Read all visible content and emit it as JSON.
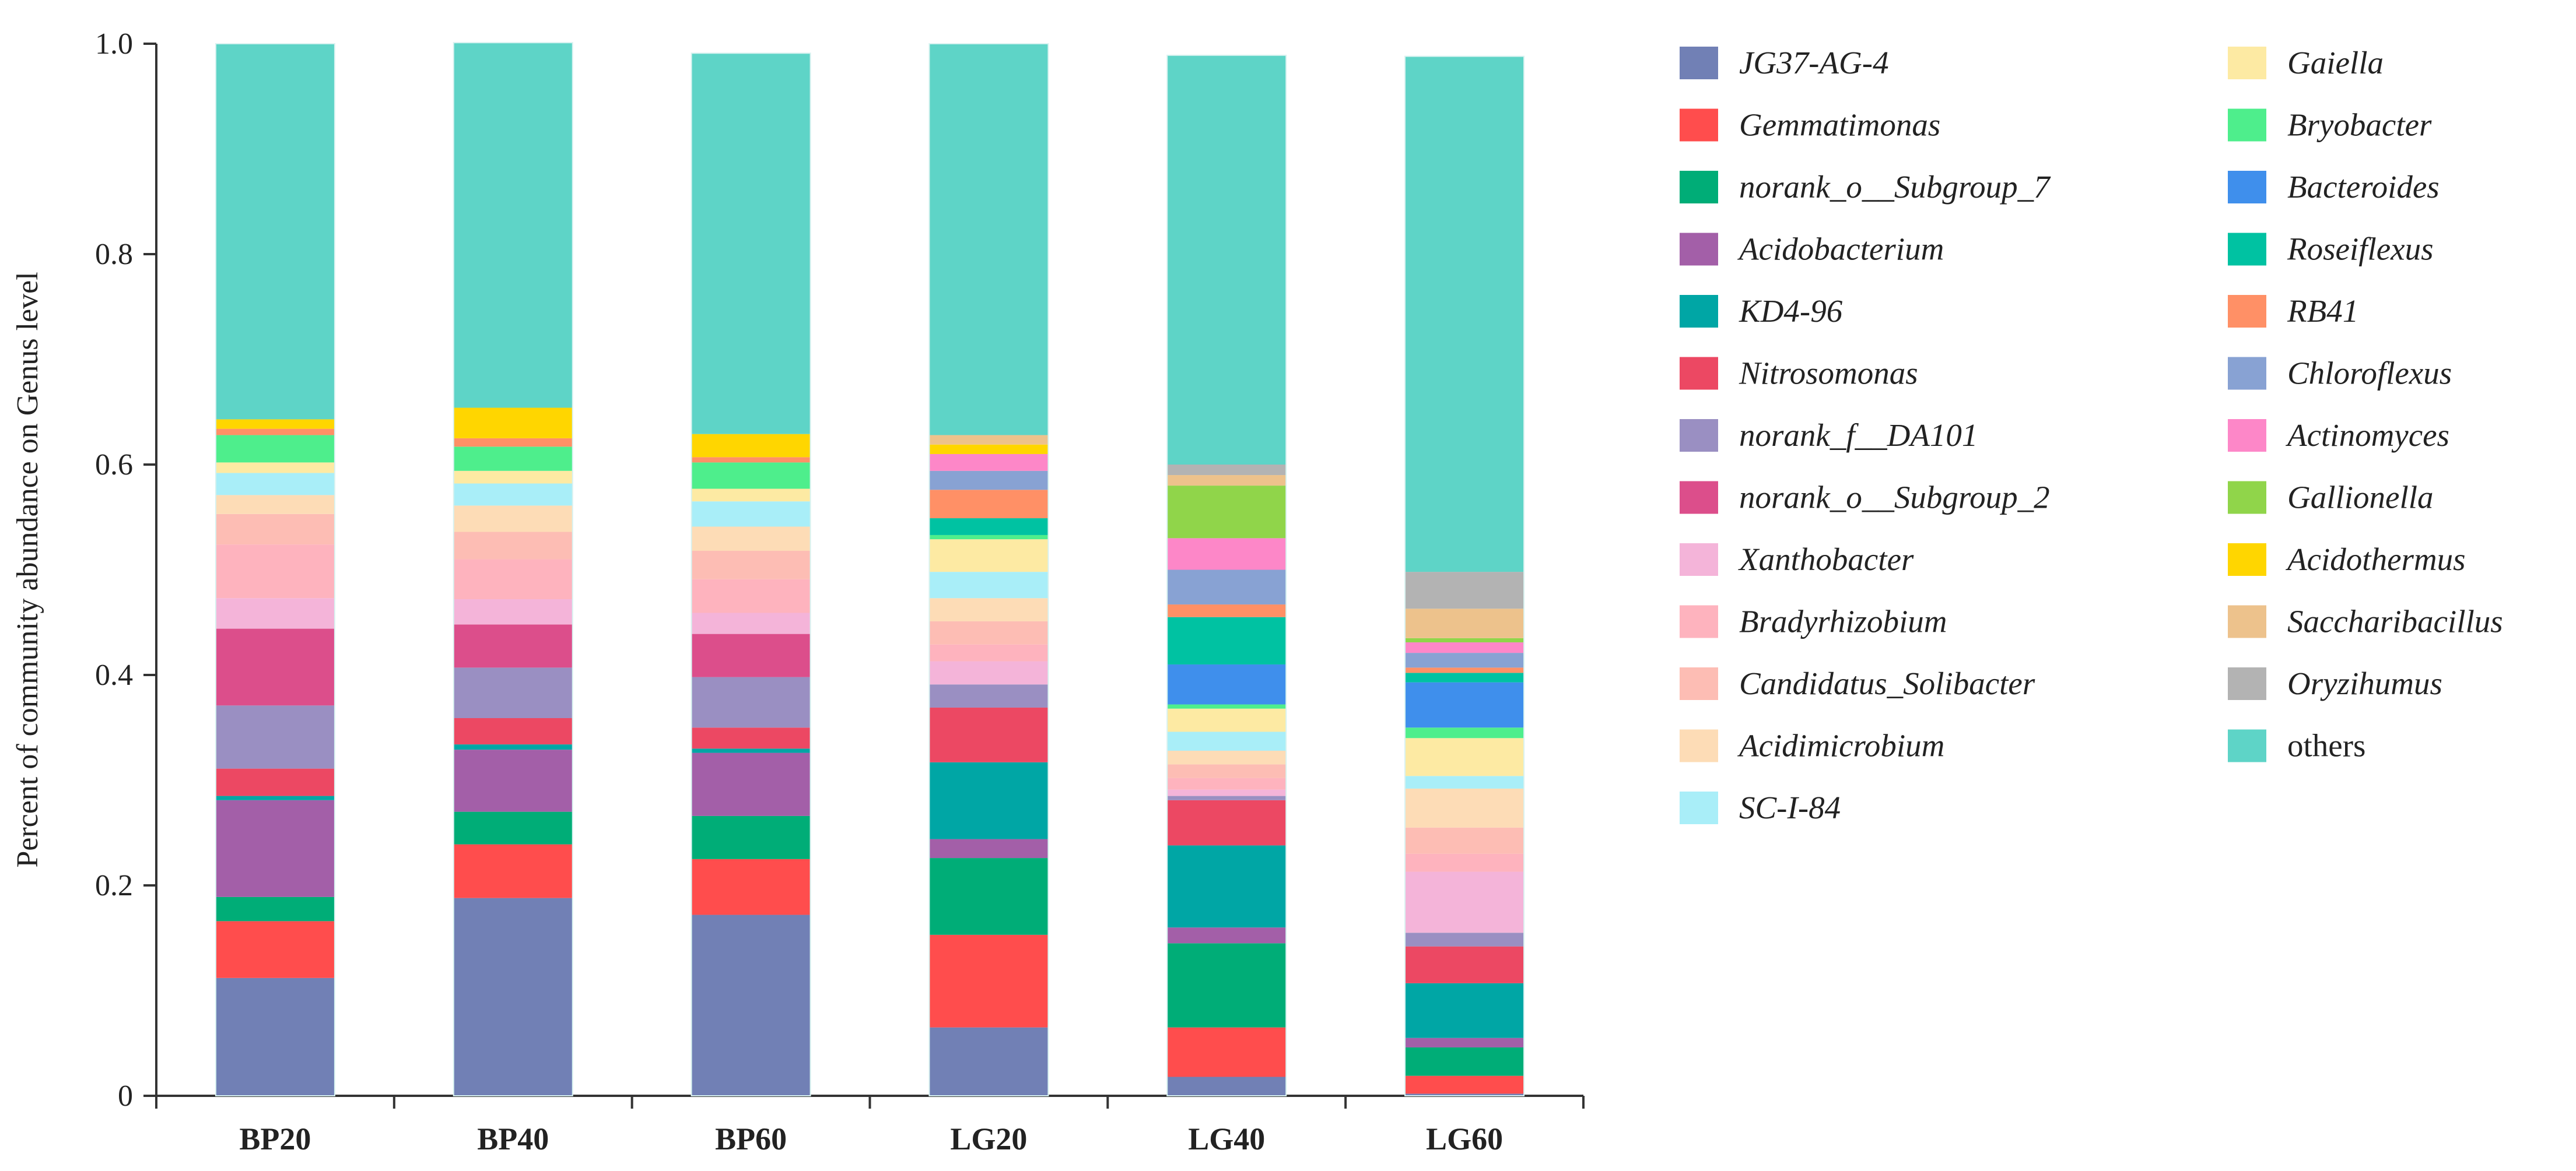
{
  "chart_data": {
    "type": "bar",
    "stacked": true,
    "title": "",
    "xlabel": "",
    "ylabel": "Percent of community abundance on Genus level",
    "ylim": [
      0,
      1.0
    ],
    "yticks": [
      0,
      0.2,
      0.4,
      0.6,
      0.8,
      1.0
    ],
    "ytick_labels": [
      "0",
      "0.2",
      "0.4",
      "0.6",
      "0.8",
      "1.0"
    ],
    "categories": [
      "BP20",
      "BP40",
      "BP60",
      "LG20",
      "LG40",
      "LG60"
    ],
    "legend_position": "right",
    "series": [
      {
        "name": "JG37-AG-4",
        "color": "#7180B5",
        "italic": true,
        "values": [
          0.112,
          0.188,
          0.172,
          0.065,
          0.018,
          0.002
        ]
      },
      {
        "name": "Gemmatimonas",
        "color": "#FF4D4D",
        "italic": true,
        "values": [
          0.054,
          0.051,
          0.053,
          0.088,
          0.047,
          0.017
        ]
      },
      {
        "name": "norank_o__Subgroup_7",
        "color": "#00AD77",
        "italic": true,
        "values": [
          0.023,
          0.031,
          0.041,
          0.073,
          0.08,
          0.027
        ]
      },
      {
        "name": "Acidobacterium",
        "color": "#A35FA8",
        "italic": true,
        "values": [
          0.092,
          0.059,
          0.06,
          0.018,
          0.015,
          0.009
        ]
      },
      {
        "name": "KD4-96",
        "color": "#00A6A5",
        "italic": true,
        "values": [
          0.004,
          0.005,
          0.004,
          0.073,
          0.078,
          0.052
        ]
      },
      {
        "name": "Nitrosomonas",
        "color": "#EC4863",
        "italic": true,
        "values": [
          0.026,
          0.025,
          0.02,
          0.052,
          0.043,
          0.035
        ]
      },
      {
        "name": "norank_f__DA101",
        "color": "#9A8FC2",
        "italic": true,
        "values": [
          0.06,
          0.048,
          0.048,
          0.022,
          0.004,
          0.013
        ]
      },
      {
        "name": "norank_o__Subgroup_2",
        "color": "#DC4E8B",
        "italic": true,
        "values": [
          0.073,
          0.041,
          0.041,
          0.0,
          0.0,
          0.0
        ]
      },
      {
        "name": "Xanthobacter",
        "color": "#F4B4D9",
        "italic": true,
        "values": [
          0.029,
          0.024,
          0.02,
          0.022,
          0.006,
          0.058
        ]
      },
      {
        "name": "Bradyrhizobium",
        "color": "#FEB3BE",
        "italic": true,
        "values": [
          0.051,
          0.038,
          0.032,
          0.016,
          0.011,
          0.017
        ]
      },
      {
        "name": "Candidatus_Solibacter",
        "color": "#FDBDB4",
        "italic": true,
        "values": [
          0.029,
          0.026,
          0.027,
          0.022,
          0.013,
          0.025
        ]
      },
      {
        "name": "Acidimicrobium",
        "color": "#FDDCB6",
        "italic": true,
        "values": [
          0.018,
          0.025,
          0.023,
          0.022,
          0.013,
          0.037
        ]
      },
      {
        "name": "SC-I-84",
        "color": "#A9EEF8",
        "italic": true,
        "values": [
          0.021,
          0.021,
          0.024,
          0.025,
          0.018,
          0.012
        ]
      },
      {
        "name": "Gaiella",
        "color": "#FDEAA3",
        "italic": true,
        "values": [
          0.01,
          0.012,
          0.012,
          0.031,
          0.022,
          0.036
        ]
      },
      {
        "name": "Bryobacter",
        "color": "#4EEE8C",
        "italic": true,
        "values": [
          0.026,
          0.023,
          0.025,
          0.004,
          0.004,
          0.01
        ]
      },
      {
        "name": "Bacteroides",
        "color": "#3F8FEC",
        "italic": true,
        "values": [
          0.0,
          0.0,
          0.0,
          0.0,
          0.038,
          0.043
        ]
      },
      {
        "name": "Roseiflexus",
        "color": "#00C2A2",
        "italic": true,
        "values": [
          0.0,
          0.0,
          0.0,
          0.016,
          0.045,
          0.009
        ]
      },
      {
        "name": "RB41",
        "color": "#FF9066",
        "italic": true,
        "values": [
          0.006,
          0.008,
          0.005,
          0.027,
          0.012,
          0.005
        ]
      },
      {
        "name": "Chloroflexus",
        "color": "#88A2D3",
        "italic": true,
        "values": [
          0.0,
          0.0,
          0.0,
          0.018,
          0.033,
          0.014
        ]
      },
      {
        "name": "Actinomyces",
        "color": "#FD87C8",
        "italic": true,
        "values": [
          0.0,
          0.0,
          0.0,
          0.016,
          0.03,
          0.01
        ]
      },
      {
        "name": "Gallionella",
        "color": "#90D54A",
        "italic": true,
        "values": [
          0.0,
          0.0,
          0.0,
          0.0,
          0.05,
          0.004
        ]
      },
      {
        "name": "Acidothermus",
        "color": "#FFD600",
        "italic": true,
        "values": [
          0.009,
          0.029,
          0.022,
          0.009,
          0.0,
          0.0
        ]
      },
      {
        "name": "Saccharibacillus",
        "color": "#EDC28C",
        "italic": true,
        "values": [
          0.0,
          0.0,
          0.0,
          0.009,
          0.01,
          0.028
        ]
      },
      {
        "name": "Oryzihumus",
        "color": "#B3B3B3",
        "italic": true,
        "values": [
          0.0,
          0.0,
          0.0,
          0.0,
          0.01,
          0.035
        ]
      },
      {
        "name": "others",
        "color": "#5ED4C7",
        "italic": false,
        "values": [
          0.357,
          0.347,
          0.362,
          0.372,
          0.389,
          0.49
        ]
      }
    ]
  }
}
